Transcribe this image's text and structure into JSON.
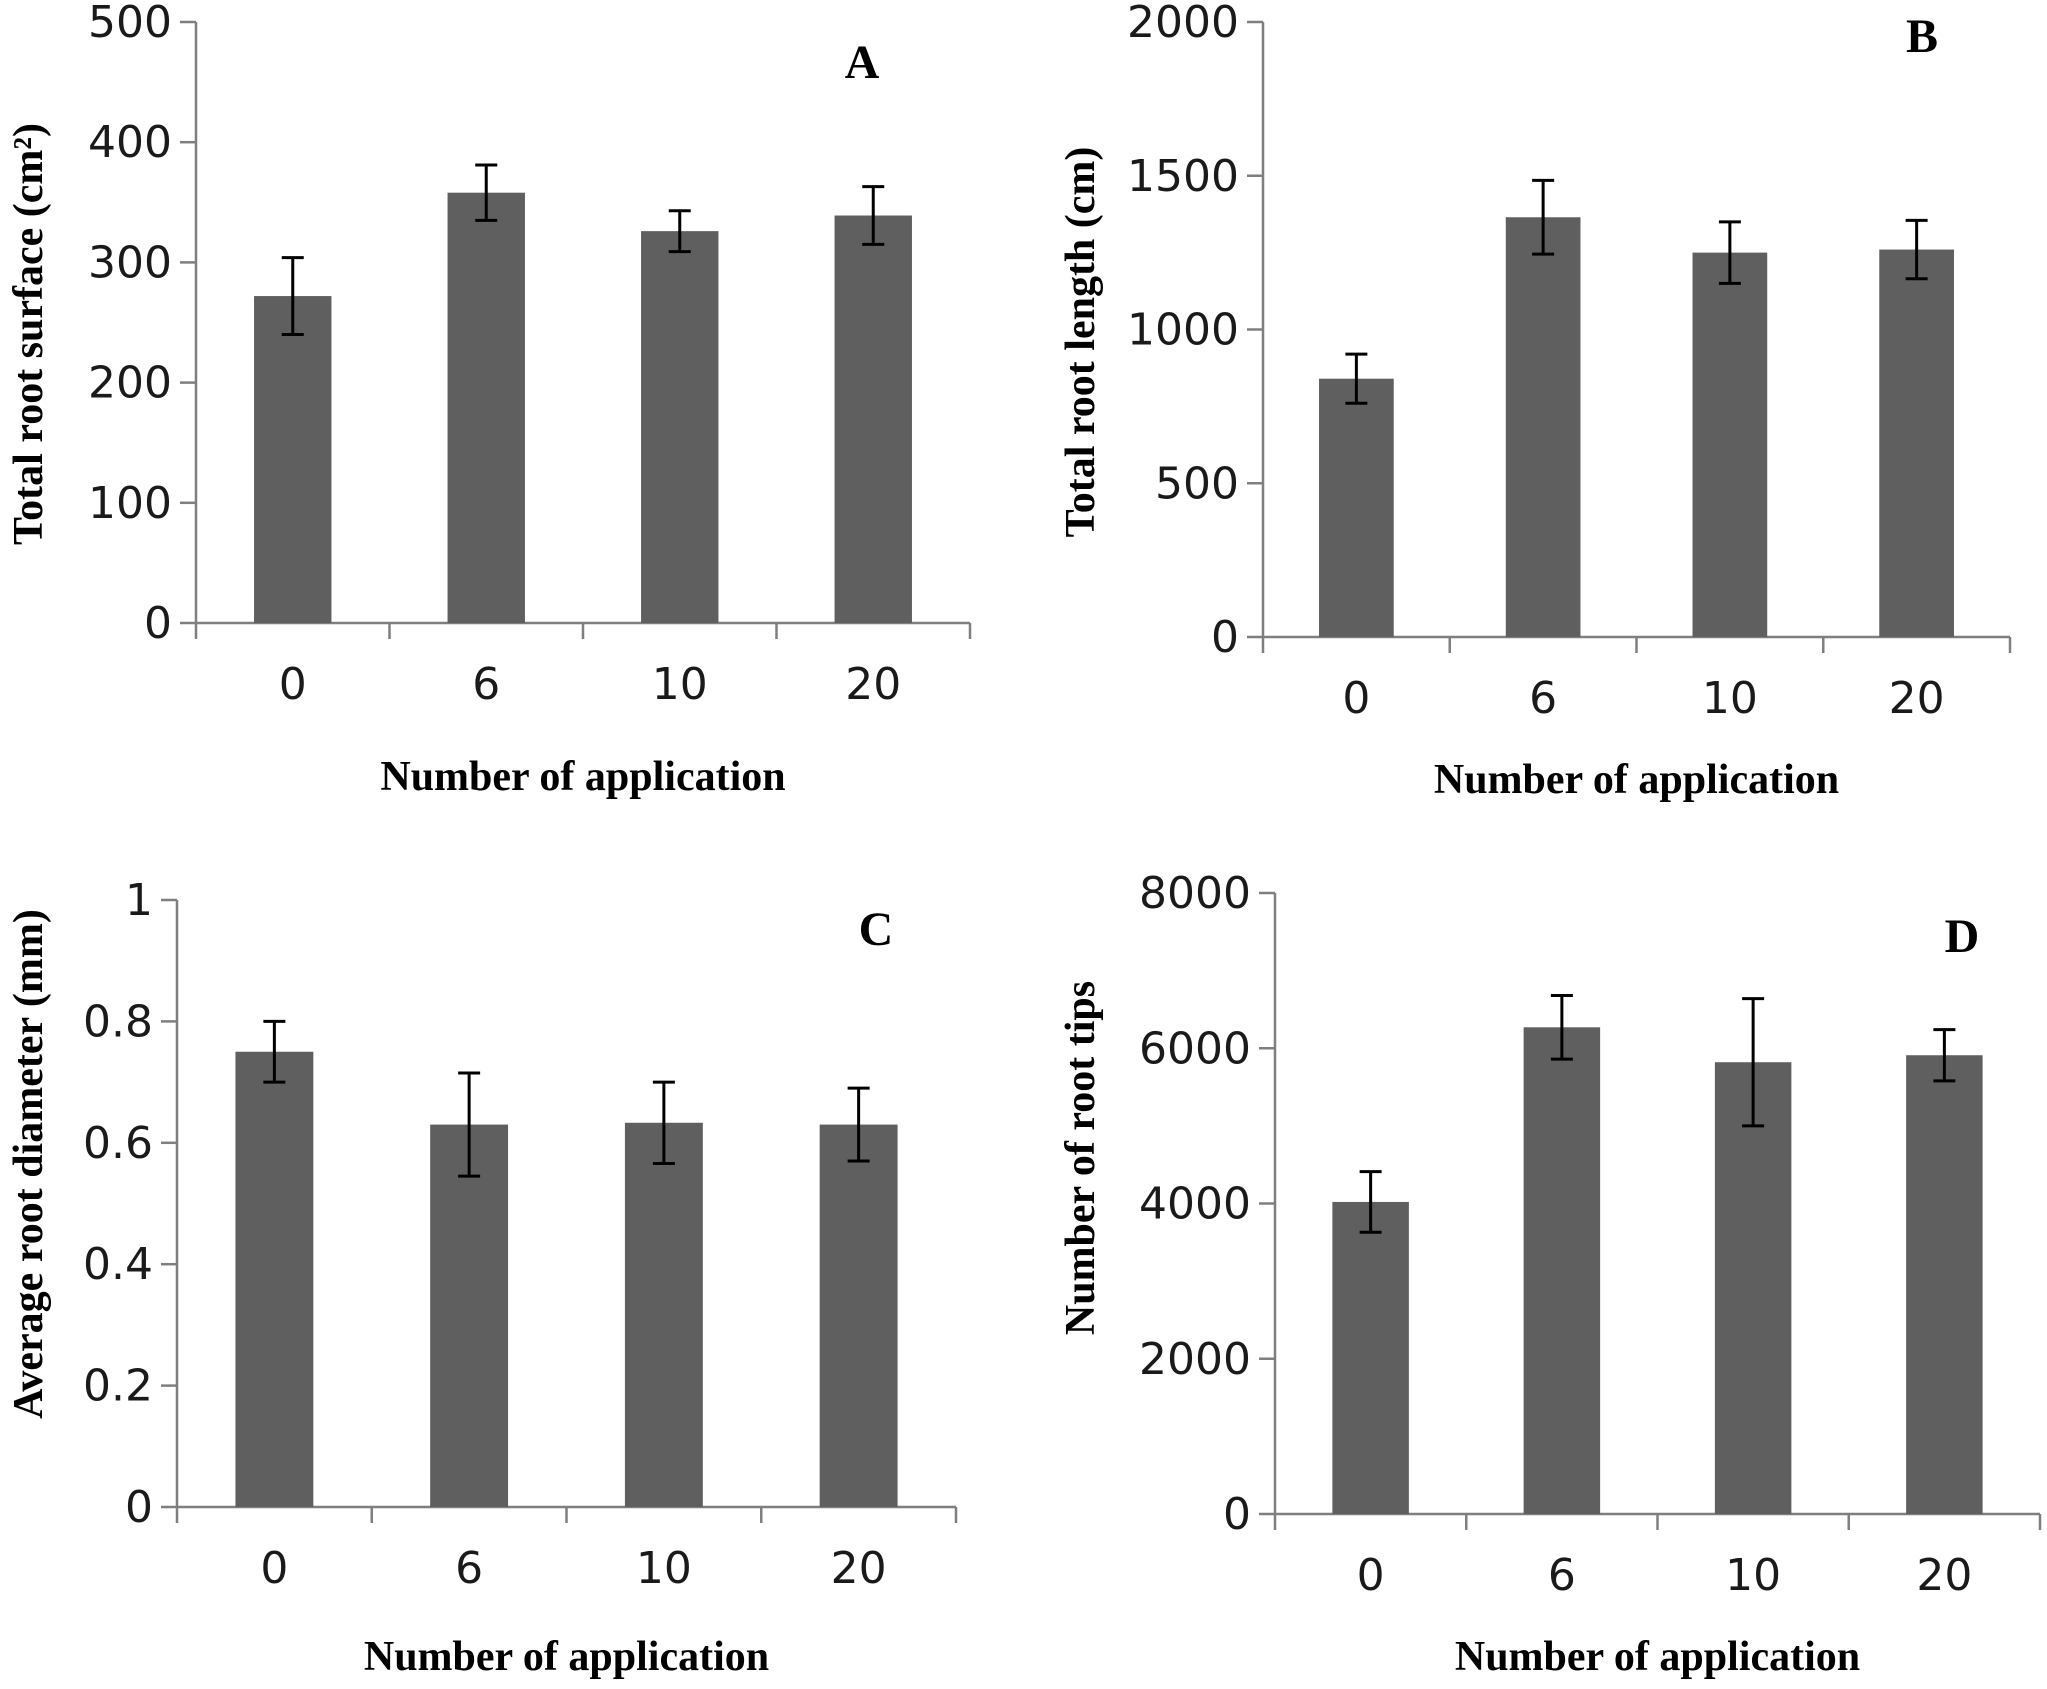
{
  "chart_data": [
    {
      "type": "bar",
      "panel": "A",
      "categories": [
        "0",
        "6",
        "10",
        "20"
      ],
      "values": [
        272,
        358,
        326,
        339
      ],
      "errors": [
        32,
        23,
        17,
        24
      ],
      "ylabel": "Total root surface (cm²)",
      "xlabel": "Number of application",
      "ylim": [
        0,
        500
      ],
      "yticks": [
        "0",
        "100",
        "200",
        "300",
        "400",
        "500"
      ],
      "bar_color": "#5f5f5f"
    },
    {
      "type": "bar",
      "panel": "B",
      "categories": [
        "0",
        "6",
        "10",
        "20"
      ],
      "values": [
        840,
        1365,
        1250,
        1260
      ],
      "errors": [
        80,
        120,
        100,
        95
      ],
      "ylabel": "Total root length (cm)",
      "xlabel": "Number of application",
      "ylim": [
        0,
        2000
      ],
      "yticks": [
        "0",
        "500",
        "1000",
        "1500",
        "2000"
      ],
      "bar_color": "#5f5f5f"
    },
    {
      "type": "bar",
      "panel": "C",
      "categories": [
        "0",
        "6",
        "10",
        "20"
      ],
      "values": [
        0.75,
        0.63,
        0.633,
        0.63
      ],
      "errors": [
        0.05,
        0.085,
        0.067,
        0.06
      ],
      "ylabel": "Average root diameter (mm)",
      "xlabel": "Number of application",
      "ylim": [
        0,
        1
      ],
      "yticks": [
        "0",
        "0.2",
        "0.4",
        "0.6",
        "0.8",
        "1"
      ],
      "bar_color": "#5f5f5f"
    },
    {
      "type": "bar",
      "panel": "D",
      "categories": [
        "0",
        "6",
        "10",
        "20"
      ],
      "values": [
        4020,
        6270,
        5820,
        5910
      ],
      "errors": [
        390,
        410,
        820,
        330
      ],
      "ylabel": "Number of root tips",
      "xlabel": "Number of application",
      "ylim": [
        0,
        8000
      ],
      "yticks": [
        "0",
        "2000",
        "4000",
        "6000",
        "8000"
      ],
      "bar_color": "#5f5f5f"
    }
  ]
}
